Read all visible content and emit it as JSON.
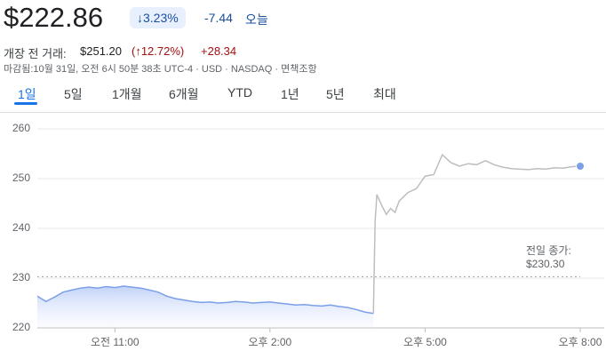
{
  "header": {
    "price": "$222.86",
    "change_percent": "↓3.23%",
    "change": "-7.44",
    "period": "오늘",
    "premarket_label": "개장 전 거래:",
    "premarket_price": "$251.20",
    "premarket_percent": "(↑12.72%)",
    "premarket_change": "+28.34",
    "info": "마감됨:10월 31일, 오전 6시 50분 38초 UTC-4 · USD · NASDAQ · 면책조항"
  },
  "tabs": [
    "1일",
    "5일",
    "1개월",
    "6개월",
    "YTD",
    "1년",
    "5년",
    "최대"
  ],
  "chart_data": {
    "type": "line",
    "xlim": [
      570,
      1200
    ],
    "xticks": [
      {
        "value": 660,
        "label": "오전 11:00"
      },
      {
        "value": 840,
        "label": "오후 2:00"
      },
      {
        "value": 1020,
        "label": "오후 5:00"
      },
      {
        "value": 1200,
        "label": "오후 8:00"
      }
    ],
    "ylim": [
      220,
      260
    ],
    "yticks": [
      220,
      230,
      240,
      250,
      260
    ],
    "grid": true,
    "previous_close": {
      "label": "전일 종가:",
      "value": 230.3,
      "value_label": "$230.30"
    },
    "series": [
      {
        "color": "#7b9fe8",
        "x": [
          570,
          580,
          590,
          600,
          610,
          620,
          630,
          640,
          650,
          660,
          670,
          680,
          690,
          700,
          710,
          720,
          730,
          740,
          750,
          760,
          770,
          780,
          790,
          800,
          810,
          820,
          830,
          840,
          850,
          860,
          870,
          880,
          890,
          900,
          910,
          920,
          930,
          940,
          950,
          960
        ],
        "values": [
          226.4,
          225.3,
          226.2,
          227.2,
          227.6,
          228.0,
          228.2,
          228.0,
          228.3,
          228.1,
          228.4,
          228.2,
          228.0,
          227.6,
          227.2,
          226.4,
          225.9,
          225.6,
          225.3,
          225.1,
          225.2,
          225.0,
          225.1,
          225.3,
          225.2,
          225.0,
          225.1,
          225.2,
          225.0,
          224.8,
          224.6,
          224.7,
          224.5,
          224.4,
          224.6,
          224.3,
          224.1,
          223.7,
          223.2,
          222.9
        ]
      },
      {
        "color": "#bdbdbd",
        "x": [
          962,
          964,
          970,
          975,
          980,
          985,
          990,
          1000,
          1010,
          1020,
          1030,
          1040,
          1050,
          1060,
          1070,
          1080,
          1090,
          1100,
          1110,
          1120,
          1130,
          1140,
          1150,
          1160,
          1170,
          1180,
          1190,
          1200
        ],
        "values": [
          241.5,
          246.8,
          244.5,
          242.8,
          244.0,
          243.2,
          245.5,
          247.2,
          248.0,
          250.5,
          250.8,
          254.8,
          253.2,
          252.5,
          253.0,
          252.8,
          253.6,
          252.8,
          252.3,
          252.0,
          251.9,
          251.8,
          252.0,
          251.9,
          252.2,
          252.1,
          252.4,
          252.5
        ]
      }
    ]
  }
}
